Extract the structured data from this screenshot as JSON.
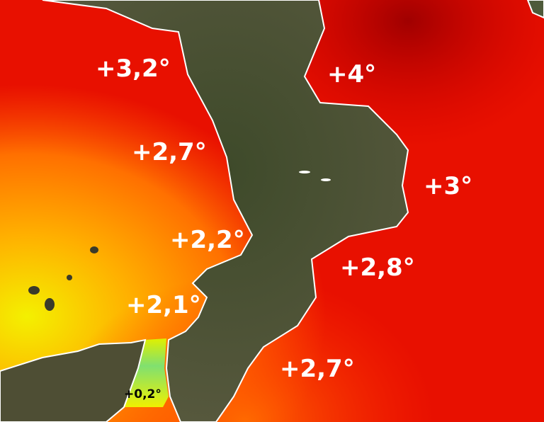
{
  "colors": {
    "land": "#4a5233",
    "sea_hot": "#e00000",
    "sea_warm": "#ff5a00",
    "sea_mild": "#ffb000",
    "sea_cool": "#f0f000",
    "strait": "#80e070",
    "coastline": "#ffffff"
  },
  "anomalies": [
    {
      "label": "+3,2°"
    },
    {
      "label": "+4°"
    },
    {
      "label": "+2,7°"
    },
    {
      "label": "+3°"
    },
    {
      "label": "+2,2°"
    },
    {
      "label": "+2,8°"
    },
    {
      "label": "+2,1°"
    },
    {
      "label": "+2,7°"
    },
    {
      "label": "+0,2°"
    }
  ]
}
